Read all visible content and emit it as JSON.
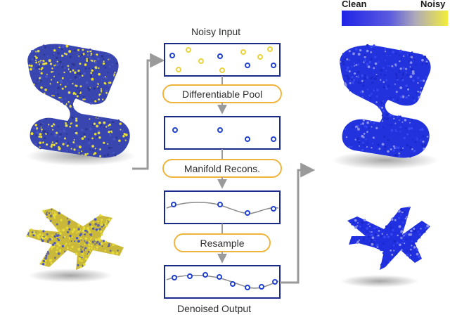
{
  "pipeline": {
    "input_label": "Noisy Input",
    "output_label": "Denoised Output",
    "steps": [
      "Differentiable Pool",
      "Manifold Recons.",
      "Resample"
    ]
  },
  "legend": {
    "clean_label": "Clean",
    "noisy_label": "Noisy",
    "clean_color": "#1f24e6",
    "noisy_color": "#f2ee3a"
  },
  "colors": {
    "box_stroke": "#1a2a8a",
    "pill_stroke": "#f0b43c",
    "arrow": "#9a9a9a",
    "point_clean": "#1f3fd0",
    "point_noisy": "#e8d33a",
    "curve": "#8a8a8a",
    "input_shape_base": "#3a46b0",
    "input_shape_noise": "#e6dc3a",
    "output_shape": "#2233dd"
  },
  "shapes": {
    "left": [
      "noisy-chair",
      "noisy-airplane"
    ],
    "right": [
      "denoised-chair",
      "denoised-airplane"
    ]
  }
}
